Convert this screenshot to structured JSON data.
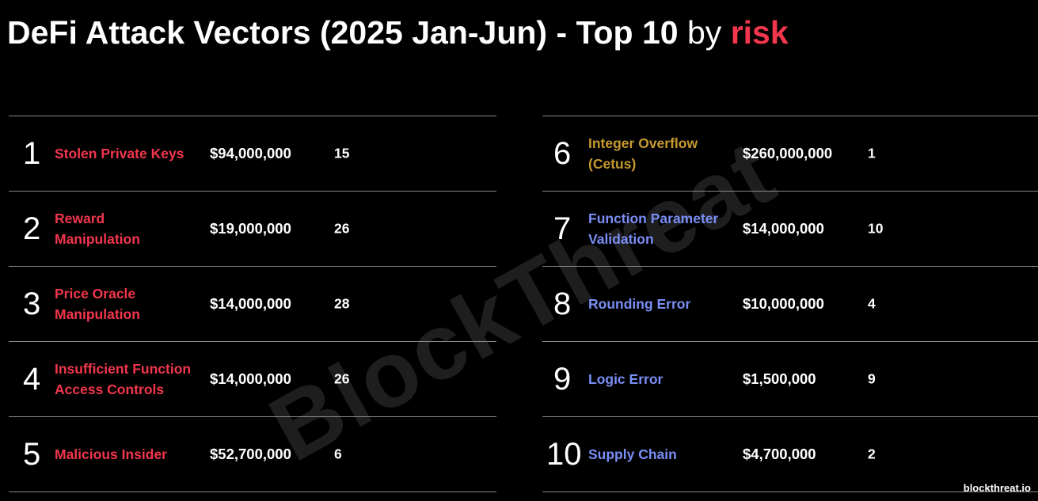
{
  "title": {
    "main": "DeFi Attack Vectors (2025 Jan-Jun) - Top 10",
    "by": " by ",
    "risk": "risk"
  },
  "colors": {
    "risk_red": "#f2364c",
    "gold": "#c69a2f",
    "blue": "#7a8ef5",
    "divider": "#8a8a8a",
    "watermark": "#1e1e1e"
  },
  "watermark": "BlockThreat",
  "left_rows": [
    {
      "rank": "1",
      "name": "Stolen Private Keys",
      "amount": "$94,000,000",
      "count": "15",
      "color": "#f2364c"
    },
    {
      "rank": "2",
      "name": "Reward\nManipulation",
      "amount": "$19,000,000",
      "count": "26",
      "color": "#f2364c"
    },
    {
      "rank": "3",
      "name": "Price Oracle\nManipulation",
      "amount": "$14,000,000",
      "count": "28",
      "color": "#f2364c"
    },
    {
      "rank": "4",
      "name": "Insufficient Function\nAccess Controls",
      "amount": "$14,000,000",
      "count": "26",
      "color": "#f2364c"
    },
    {
      "rank": "5",
      "name": "Malicious Insider",
      "amount": "$52,700,000",
      "count": "6",
      "color": "#f2364c"
    }
  ],
  "right_rows": [
    {
      "rank": "6",
      "name": "Integer Overflow\n(Cetus)",
      "amount": "$260,000,000",
      "count": "1",
      "color": "#c69a2f"
    },
    {
      "rank": "7",
      "name": "Function Parameter\nValidation",
      "amount": "$14,000,000",
      "count": "10",
      "color": "#7a8ef5"
    },
    {
      "rank": "8",
      "name": "Rounding Error",
      "amount": "$10,000,000",
      "count": "4",
      "color": "#7a8ef5"
    },
    {
      "rank": "9",
      "name": "Logic Error",
      "amount": "$1,500,000",
      "count": "9",
      "color": "#7a8ef5"
    },
    {
      "rank": "10",
      "name": "Supply Chain",
      "amount": "$4,700,000",
      "count": "2",
      "color": "#7a8ef5"
    }
  ],
  "footer": "blockthreat.io"
}
